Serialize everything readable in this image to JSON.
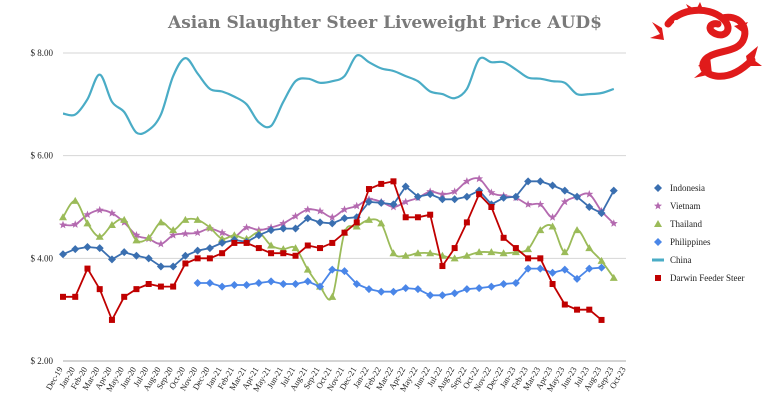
{
  "chart_data": {
    "type": "line",
    "title": "Asian Slaughter Steer Liveweight Price AUD$",
    "y_ticks": [
      "$ 2.00",
      "$ 4.00",
      "$ 6.00",
      "$ 8.00"
    ],
    "ylim": [
      2,
      8
    ],
    "grid": true,
    "legend_position": "right",
    "x_labels": [
      "Dec-19",
      "Jan-20",
      "Feb-20",
      "Mar-20",
      "Apr-20",
      "May-20",
      "Jun-20",
      "Jul-20",
      "Aug-20",
      "Sep-20",
      "Oct-20",
      "Nov-20",
      "Dec-20",
      "Jan-21",
      "Feb-21",
      "Mar-21",
      "Apr-21",
      "May-21",
      "Jun-21",
      "Jul-21",
      "Aug-21",
      "Sep-21",
      "Oct-21",
      "Nov-21",
      "Dec-21",
      "Jan-22",
      "Feb-22",
      "Mar-22",
      "Apr-22",
      "May-22",
      "Jun-22",
      "Jul-22",
      "Aug-22",
      "Sep-22",
      "Oct-22",
      "Nov-22",
      "Dec-22",
      "Jan-23",
      "Feb-23",
      "Mar-23",
      "Apr-23",
      "May-23",
      "Jun-23",
      "Jul-23",
      "Aug-23",
      "Sep-23",
      "Oct-23"
    ],
    "x_count": 47,
    "series": [
      {
        "name": "Indonesia",
        "color": "#3a6fb0",
        "marker": "diamond",
        "smooth": false,
        "values": [
          [
            0,
            4.08
          ],
          [
            1,
            4.18
          ],
          [
            2,
            4.22
          ],
          [
            3,
            4.2
          ],
          [
            4,
            3.98
          ],
          [
            5,
            4.12
          ],
          [
            6,
            4.05
          ],
          [
            7,
            4.0
          ],
          [
            8,
            3.84
          ],
          [
            9,
            3.84
          ],
          [
            10,
            4.05
          ],
          [
            11,
            4.15
          ],
          [
            12,
            4.2
          ],
          [
            13,
            4.3
          ],
          [
            14,
            4.36
          ],
          [
            15,
            4.32
          ],
          [
            16,
            4.45
          ],
          [
            17,
            4.55
          ],
          [
            18,
            4.58
          ],
          [
            19,
            4.58
          ],
          [
            20,
            4.78
          ],
          [
            21,
            4.7
          ],
          [
            22,
            4.68
          ],
          [
            23,
            4.78
          ],
          [
            24,
            4.8
          ],
          [
            25,
            5.1
          ],
          [
            26,
            5.08
          ],
          [
            27,
            5.05
          ],
          [
            28,
            5.4
          ],
          [
            29,
            5.2
          ],
          [
            30,
            5.25
          ],
          [
            31,
            5.15
          ],
          [
            32,
            5.15
          ],
          [
            33,
            5.2
          ],
          [
            34,
            5.32
          ],
          [
            35,
            5.05
          ],
          [
            36,
            5.18
          ],
          [
            37,
            5.2
          ],
          [
            38,
            5.5
          ],
          [
            39,
            5.5
          ],
          [
            40,
            5.42
          ],
          [
            41,
            5.32
          ],
          [
            42,
            5.2
          ],
          [
            43,
            5.0
          ],
          [
            44,
            4.88
          ],
          [
            45,
            5.32
          ]
        ]
      },
      {
        "name": "Vietnam",
        "color": "#b46ab0",
        "marker": "star",
        "smooth": true,
        "values": [
          [
            0,
            4.65
          ],
          [
            1,
            4.66
          ],
          [
            2,
            4.85
          ],
          [
            3,
            4.94
          ],
          [
            4,
            4.88
          ],
          [
            5,
            4.7
          ],
          [
            6,
            4.45
          ],
          [
            7,
            4.38
          ],
          [
            8,
            4.28
          ],
          [
            9,
            4.45
          ],
          [
            10,
            4.48
          ],
          [
            11,
            4.5
          ],
          [
            12,
            4.58
          ],
          [
            13,
            4.5
          ],
          [
            14,
            4.42
          ],
          [
            15,
            4.6
          ],
          [
            16,
            4.55
          ],
          [
            17,
            4.6
          ],
          [
            18,
            4.68
          ],
          [
            19,
            4.82
          ],
          [
            20,
            4.95
          ],
          [
            21,
            4.92
          ],
          [
            22,
            4.8
          ],
          [
            23,
            4.95
          ],
          [
            24,
            5.02
          ],
          [
            25,
            5.15
          ],
          [
            26,
            5.1
          ],
          [
            27,
            5.0
          ],
          [
            28,
            5.1
          ],
          [
            29,
            5.18
          ],
          [
            30,
            5.3
          ],
          [
            31,
            5.25
          ],
          [
            32,
            5.3
          ],
          [
            33,
            5.5
          ],
          [
            34,
            5.55
          ],
          [
            35,
            5.28
          ],
          [
            36,
            5.22
          ],
          [
            37,
            5.18
          ],
          [
            38,
            5.05
          ],
          [
            39,
            5.05
          ],
          [
            40,
            4.8
          ],
          [
            41,
            5.1
          ],
          [
            42,
            5.2
          ],
          [
            43,
            5.25
          ],
          [
            44,
            4.92
          ],
          [
            45,
            4.68
          ]
        ]
      },
      {
        "name": "Thailand",
        "color": "#9bbb59",
        "marker": "triangle",
        "smooth": true,
        "values": [
          [
            0,
            4.8
          ],
          [
            1,
            5.12
          ],
          [
            2,
            4.68
          ],
          [
            3,
            4.42
          ],
          [
            4,
            4.65
          ],
          [
            5,
            4.75
          ],
          [
            6,
            4.35
          ],
          [
            7,
            4.4
          ],
          [
            8,
            4.7
          ],
          [
            9,
            4.55
          ],
          [
            10,
            4.75
          ],
          [
            11,
            4.75
          ],
          [
            12,
            4.6
          ],
          [
            13,
            4.38
          ],
          [
            14,
            4.45
          ],
          [
            15,
            4.38
          ],
          [
            16,
            4.5
          ],
          [
            17,
            4.25
          ],
          [
            18,
            4.18
          ],
          [
            19,
            4.2
          ],
          [
            20,
            3.78
          ],
          [
            21,
            3.45
          ],
          [
            22,
            3.25
          ],
          [
            23,
            4.5
          ],
          [
            24,
            4.62
          ],
          [
            25,
            4.75
          ],
          [
            26,
            4.68
          ],
          [
            27,
            4.1
          ],
          [
            28,
            4.05
          ],
          [
            29,
            4.1
          ],
          [
            30,
            4.1
          ],
          [
            31,
            4.05
          ],
          [
            32,
            4.0
          ],
          [
            33,
            4.05
          ],
          [
            34,
            4.12
          ],
          [
            35,
            4.12
          ],
          [
            36,
            4.1
          ],
          [
            37,
            4.12
          ],
          [
            38,
            4.18
          ],
          [
            39,
            4.55
          ],
          [
            40,
            4.62
          ],
          [
            41,
            4.12
          ],
          [
            42,
            4.55
          ],
          [
            43,
            4.2
          ],
          [
            44,
            3.95
          ],
          [
            45,
            3.62
          ]
        ]
      },
      {
        "name": "Philippines",
        "color": "#4a86e8",
        "marker": "diamond",
        "smooth": false,
        "values": [
          [
            11,
            3.52
          ],
          [
            12,
            3.52
          ],
          [
            13,
            3.45
          ],
          [
            14,
            3.48
          ],
          [
            15,
            3.48
          ],
          [
            16,
            3.52
          ],
          [
            17,
            3.55
          ],
          [
            18,
            3.5
          ],
          [
            19,
            3.5
          ],
          [
            20,
            3.55
          ],
          [
            21,
            3.45
          ],
          [
            22,
            3.78
          ],
          [
            23,
            3.75
          ],
          [
            24,
            3.5
          ],
          [
            25,
            3.4
          ],
          [
            26,
            3.35
          ],
          [
            27,
            3.35
          ],
          [
            28,
            3.42
          ],
          [
            29,
            3.4
          ],
          [
            30,
            3.28
          ],
          [
            31,
            3.28
          ],
          [
            32,
            3.32
          ],
          [
            33,
            3.4
          ],
          [
            34,
            3.42
          ],
          [
            35,
            3.45
          ],
          [
            36,
            3.5
          ],
          [
            37,
            3.52
          ],
          [
            38,
            3.8
          ],
          [
            39,
            3.8
          ],
          [
            40,
            3.72
          ],
          [
            41,
            3.78
          ],
          [
            42,
            3.6
          ],
          [
            43,
            3.8
          ],
          [
            44,
            3.82
          ]
        ]
      },
      {
        "name": "China",
        "color": "#4aacc6",
        "marker": "none",
        "smooth": true,
        "values": [
          [
            0,
            6.82
          ],
          [
            1,
            6.8
          ],
          [
            2,
            7.1
          ],
          [
            3,
            7.58
          ],
          [
            4,
            7.05
          ],
          [
            5,
            6.85
          ],
          [
            6,
            6.45
          ],
          [
            7,
            6.5
          ],
          [
            8,
            6.8
          ],
          [
            9,
            7.55
          ],
          [
            10,
            7.9
          ],
          [
            11,
            7.6
          ],
          [
            12,
            7.3
          ],
          [
            13,
            7.25
          ],
          [
            14,
            7.15
          ],
          [
            15,
            7.0
          ],
          [
            16,
            6.65
          ],
          [
            17,
            6.58
          ],
          [
            18,
            7.05
          ],
          [
            19,
            7.45
          ],
          [
            20,
            7.5
          ],
          [
            21,
            7.42
          ],
          [
            22,
            7.45
          ],
          [
            23,
            7.55
          ],
          [
            24,
            7.95
          ],
          [
            25,
            7.82
          ],
          [
            26,
            7.7
          ],
          [
            27,
            7.65
          ],
          [
            28,
            7.55
          ],
          [
            29,
            7.45
          ],
          [
            30,
            7.25
          ],
          [
            31,
            7.2
          ],
          [
            32,
            7.12
          ],
          [
            33,
            7.3
          ],
          [
            34,
            7.88
          ],
          [
            35,
            7.82
          ],
          [
            36,
            7.82
          ],
          [
            37,
            7.68
          ],
          [
            38,
            7.52
          ],
          [
            39,
            7.5
          ],
          [
            40,
            7.45
          ],
          [
            41,
            7.42
          ],
          [
            42,
            7.2
          ],
          [
            43,
            7.2
          ],
          [
            44,
            7.22
          ],
          [
            45,
            7.3
          ]
        ]
      },
      {
        "name": "Darwin Feeder Steer",
        "color": "#c00000",
        "marker": "square",
        "smooth": false,
        "values": [
          [
            0,
            3.25
          ],
          [
            1,
            3.25
          ],
          [
            2,
            3.8
          ],
          [
            3,
            3.4
          ],
          [
            4,
            2.8
          ],
          [
            5,
            3.25
          ],
          [
            6,
            3.4
          ],
          [
            7,
            3.5
          ],
          [
            8,
            3.45
          ],
          [
            9,
            3.45
          ],
          [
            10,
            3.9
          ],
          [
            11,
            4.0
          ],
          [
            12,
            4.0
          ],
          [
            13,
            4.1
          ],
          [
            14,
            4.3
          ],
          [
            15,
            4.3
          ],
          [
            16,
            4.2
          ],
          [
            17,
            4.1
          ],
          [
            18,
            4.1
          ],
          [
            19,
            4.05
          ],
          [
            20,
            4.25
          ],
          [
            21,
            4.2
          ],
          [
            22,
            4.3
          ],
          [
            23,
            4.5
          ],
          [
            24,
            4.7
          ],
          [
            25,
            5.35
          ],
          [
            26,
            5.45
          ],
          [
            27,
            5.5
          ],
          [
            28,
            4.8
          ],
          [
            29,
            4.8
          ],
          [
            30,
            4.85
          ],
          [
            31,
            3.85
          ],
          [
            32,
            4.2
          ],
          [
            33,
            4.7
          ],
          [
            34,
            5.25
          ],
          [
            35,
            5.0
          ],
          [
            36,
            4.4
          ],
          [
            37,
            4.2
          ],
          [
            38,
            4.0
          ],
          [
            39,
            4.0
          ],
          [
            40,
            3.5
          ],
          [
            41,
            3.1
          ],
          [
            42,
            3.0
          ],
          [
            43,
            3.0
          ],
          [
            44,
            2.8
          ]
        ]
      }
    ]
  },
  "logo": {
    "name": "red dragon emblem"
  }
}
